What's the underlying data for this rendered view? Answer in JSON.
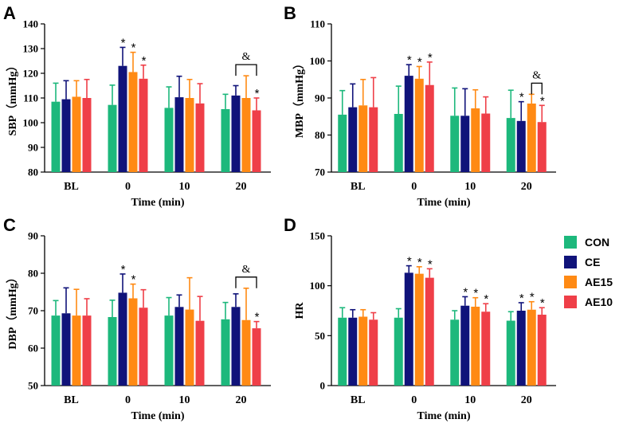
{
  "chart_data": [
    {
      "panel": "A",
      "type": "bar",
      "ylabel": "SBP（mmHg）",
      "xlabel": "Time (min)",
      "ylim": [
        80,
        140
      ],
      "yticks": [
        80,
        90,
        100,
        110,
        120,
        130,
        140
      ],
      "categories": [
        "BL",
        "0",
        "10",
        "20"
      ],
      "series": [
        {
          "name": "CON",
          "values": [
            108.5,
            107.2,
            106.0,
            105.5
          ],
          "errors": [
            7.5,
            8.0,
            8.5,
            6.0
          ],
          "stars": [
            false,
            false,
            false,
            false
          ]
        },
        {
          "name": "CE",
          "values": [
            109.5,
            123.0,
            110.3,
            111.0
          ],
          "errors": [
            7.5,
            7.5,
            8.5,
            4.0
          ],
          "stars": [
            false,
            true,
            false,
            false
          ]
        },
        {
          "name": "AE15",
          "values": [
            110.5,
            120.5,
            110.0,
            110.0
          ],
          "errors": [
            6.5,
            8.0,
            7.5,
            9.0
          ],
          "stars": [
            false,
            true,
            false,
            false
          ]
        },
        {
          "name": "AE10",
          "values": [
            110.0,
            117.8,
            107.8,
            105.0
          ],
          "errors": [
            7.5,
            5.5,
            8.0,
            5.0
          ],
          "stars": [
            false,
            true,
            false,
            true
          ]
        }
      ],
      "bracket": {
        "category": "20",
        "from": "CE",
        "to": "AE10",
        "label": "&"
      }
    },
    {
      "panel": "B",
      "type": "bar",
      "ylabel": "MBP（mmHg）",
      "xlabel": "Time (min)",
      "ylim": [
        70,
        110
      ],
      "yticks": [
        70,
        80,
        90,
        100,
        110
      ],
      "categories": [
        "BL",
        "0",
        "10",
        "20"
      ],
      "series": [
        {
          "name": "CON",
          "values": [
            85.5,
            85.7,
            85.2,
            84.6
          ],
          "errors": [
            6.5,
            7.5,
            7.5,
            7.5
          ],
          "stars": [
            false,
            false,
            false,
            false
          ]
        },
        {
          "name": "CE",
          "values": [
            87.5,
            96.0,
            85.2,
            83.8
          ],
          "errors": [
            6.3,
            3.0,
            7.3,
            5.2
          ],
          "stars": [
            false,
            true,
            false,
            true
          ]
        },
        {
          "name": "AE15",
          "values": [
            88.0,
            95.2,
            87.2,
            88.5
          ],
          "errors": [
            7.0,
            3.3,
            5.0,
            2.5
          ],
          "stars": [
            false,
            true,
            false,
            false
          ]
        },
        {
          "name": "AE10",
          "values": [
            87.5,
            93.5,
            85.8,
            83.5
          ],
          "errors": [
            8.0,
            6.2,
            4.5,
            4.5
          ],
          "stars": [
            false,
            true,
            false,
            true
          ]
        }
      ],
      "bracket": {
        "category": "20",
        "from": "AE15",
        "to": "AE10",
        "label": "&"
      }
    },
    {
      "panel": "C",
      "type": "bar",
      "ylabel": "DBP（mmHg）",
      "xlabel": "Time (min)",
      "ylim": [
        50,
        90
      ],
      "yticks": [
        50,
        60,
        70,
        80,
        90
      ],
      "categories": [
        "BL",
        "0",
        "10",
        "20"
      ],
      "series": [
        {
          "name": "CON",
          "values": [
            68.7,
            68.3,
            68.7,
            67.7
          ],
          "errors": [
            4.0,
            4.5,
            4.8,
            4.5
          ],
          "stars": [
            false,
            false,
            false,
            false
          ]
        },
        {
          "name": "CE",
          "values": [
            69.3,
            74.8,
            71.0,
            71.0
          ],
          "errors": [
            6.8,
            5.0,
            3.2,
            3.5
          ],
          "stars": [
            false,
            true,
            false,
            false
          ]
        },
        {
          "name": "AE15",
          "values": [
            68.7,
            73.3,
            70.3,
            67.5
          ],
          "errors": [
            7.0,
            3.8,
            8.5,
            8.5
          ],
          "stars": [
            false,
            true,
            false,
            false
          ]
        },
        {
          "name": "AE10",
          "values": [
            68.7,
            70.8,
            67.3,
            65.3
          ],
          "errors": [
            4.5,
            4.8,
            6.5,
            1.8
          ],
          "stars": [
            false,
            false,
            false,
            true
          ]
        }
      ],
      "bracket": {
        "category": "20",
        "from": "CE",
        "to": "AE10",
        "label": "&"
      }
    },
    {
      "panel": "D",
      "type": "bar",
      "ylabel": "HR",
      "xlabel": "Time (min)",
      "ylim": [
        0,
        150
      ],
      "yticks": [
        0,
        50,
        100,
        150
      ],
      "categories": [
        "BL",
        "0",
        "10",
        "20"
      ],
      "series": [
        {
          "name": "CON",
          "values": [
            68,
            68,
            66,
            65
          ],
          "errors": [
            10,
            9,
            9,
            9
          ],
          "stars": [
            false,
            false,
            false,
            false
          ]
        },
        {
          "name": "CE",
          "values": [
            68,
            113,
            80,
            75
          ],
          "errors": [
            8,
            7,
            9,
            8
          ],
          "stars": [
            false,
            true,
            true,
            true
          ]
        },
        {
          "name": "AE15",
          "values": [
            69,
            112,
            79,
            76
          ],
          "errors": [
            7,
            7,
            9,
            8
          ],
          "stars": [
            false,
            true,
            true,
            true
          ]
        },
        {
          "name": "AE10",
          "values": [
            66,
            108,
            74,
            71
          ],
          "errors": [
            7,
            9,
            8,
            7
          ],
          "stars": [
            false,
            true,
            true,
            true
          ]
        }
      ],
      "bracket": null
    }
  ],
  "legend": {
    "entries": [
      {
        "name": "CON",
        "color": "#1db87c"
      },
      {
        "name": "CE",
        "color": "#10137a"
      },
      {
        "name": "AE15",
        "color": "#ff8a14"
      },
      {
        "name": "AE10",
        "color": "#ef3f48"
      }
    ]
  },
  "star_symbol": "*"
}
